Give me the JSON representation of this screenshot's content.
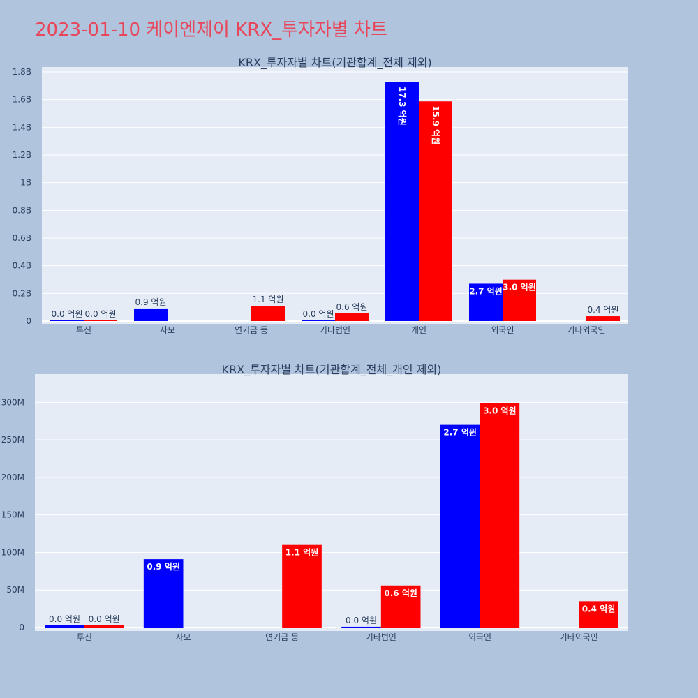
{
  "title": "2023-01-10 케이엔제이 KRX_투자자별 차트",
  "colors": {
    "series_a": "#0000ff",
    "series_b": "#ff0000",
    "plot_bg": "#e5ecf6",
    "page_bg": "#b0c4de",
    "title": "#e8475b"
  },
  "chart_data": [
    {
      "type": "bar",
      "title": "KRX_투자자별 차트(기관합계_전체 제외)",
      "categories": [
        "투신",
        "사모",
        "연기금 등",
        "기타법인",
        "개인",
        "외국인",
        "기타외국인"
      ],
      "ylim": [
        0,
        1800000000
      ],
      "yticks": [
        0,
        200000000,
        400000000,
        600000000,
        800000000,
        1000000000,
        1200000000,
        1400000000,
        1600000000,
        1800000000
      ],
      "ytick_labels": [
        "0",
        "0.2B",
        "0.4B",
        "0.6B",
        "0.8B",
        "1B",
        "1.2B",
        "1.4B",
        "1.6B",
        "1.8B"
      ],
      "grid": true,
      "series": [
        {
          "color": "#0000ff",
          "values": [
            3000000,
            91000000,
            null,
            1000000,
            1725000000,
            270000000,
            null
          ],
          "labels": [
            "0.0 억원",
            "0.9 억원",
            "",
            "0.0 억원",
            "17.3 억원",
            "2.7 억원",
            ""
          ]
        },
        {
          "color": "#ff0000",
          "values": [
            3000000,
            null,
            110000000,
            56000000,
            1587000000,
            299000000,
            35000000
          ],
          "labels": [
            "0.0 억원",
            "",
            "1.1 억원",
            "0.6 억원",
            "15.9 억원",
            "3.0 억원",
            "0.4 억원"
          ]
        }
      ]
    },
    {
      "type": "bar",
      "title": "KRX_투자자별 차트(기관합계_전체_개인 제외)",
      "categories": [
        "투신",
        "사모",
        "연기금 등",
        "기타법인",
        "외국인",
        "기타외국인"
      ],
      "ylim": [
        0,
        318000000
      ],
      "yticks": [
        0,
        50000000,
        100000000,
        150000000,
        200000000,
        250000000,
        300000000
      ],
      "ytick_labels": [
        "0",
        "50M",
        "100M",
        "150M",
        "200M",
        "250M",
        "300M"
      ],
      "grid": true,
      "series": [
        {
          "color": "#0000ff",
          "values": [
            3000000,
            91000000,
            null,
            1000000,
            270000000,
            null
          ],
          "labels": [
            "0.0 억원",
            "0.9 억원",
            "",
            "0.0 억원",
            "2.7 억원",
            ""
          ]
        },
        {
          "color": "#ff0000",
          "values": [
            3000000,
            null,
            110000000,
            56000000,
            299000000,
            35000000
          ],
          "labels": [
            "0.0 억원",
            "",
            "1.1 억원",
            "0.6 억원",
            "3.0 억원",
            "0.4 억원"
          ]
        }
      ]
    }
  ]
}
